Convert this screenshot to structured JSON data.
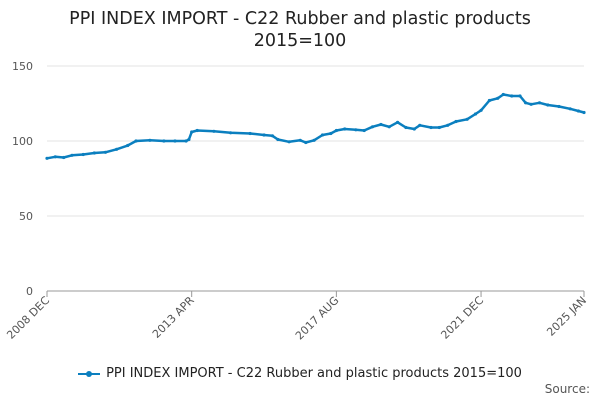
{
  "title_line1": "PPI INDEX IMPORT - C22 Rubber and plastic products",
  "title_line2": "2015=100",
  "legend_label": "PPI INDEX IMPORT - C22 Rubber and plastic products 2015=100",
  "source_label": "Source:",
  "colors": {
    "series": "#0b7fbf",
    "grid": "#e3e3e3",
    "axis": "#999999"
  },
  "chart_data": {
    "type": "line",
    "title": "PPI INDEX IMPORT - C22 Rubber and plastic products 2015=100",
    "xlabel": "",
    "ylabel": "",
    "ylim": [
      0,
      150
    ],
    "yticks": [
      0,
      50,
      100,
      150
    ],
    "grid": "horizontal",
    "legend_position": "bottom",
    "x_tick_labels": [
      "2008 DEC",
      "2013 APR",
      "2017 AUG",
      "2021 DEC",
      "2025 JAN"
    ],
    "x_tick_dates": [
      "2008-12",
      "2013-04",
      "2017-08",
      "2021-12",
      "2025-01"
    ],
    "series": [
      {
        "name": "PPI INDEX IMPORT - C22 Rubber and plastic products 2015=100",
        "points": [
          [
            "2008-12",
            88.5
          ],
          [
            "2009-03",
            89.5
          ],
          [
            "2009-06",
            89.0
          ],
          [
            "2009-09",
            90.5
          ],
          [
            "2010-01",
            91.0
          ],
          [
            "2010-05",
            92.0
          ],
          [
            "2010-09",
            92.5
          ],
          [
            "2011-01",
            94.5
          ],
          [
            "2011-05",
            97.0
          ],
          [
            "2011-08",
            100.0
          ],
          [
            "2012-01",
            100.5
          ],
          [
            "2012-06",
            100.0
          ],
          [
            "2012-10",
            100.0
          ],
          [
            "2013-02",
            100.0
          ],
          [
            "2013-03",
            101.0
          ],
          [
            "2013-04",
            106.0
          ],
          [
            "2013-06",
            107.0
          ],
          [
            "2013-12",
            106.5
          ],
          [
            "2014-06",
            105.5
          ],
          [
            "2015-01",
            105.0
          ],
          [
            "2015-06",
            104.0
          ],
          [
            "2015-09",
            103.5
          ],
          [
            "2015-11",
            101.0
          ],
          [
            "2016-03",
            99.5
          ],
          [
            "2016-07",
            100.5
          ],
          [
            "2016-09",
            99.0
          ],
          [
            "2016-12",
            100.5
          ],
          [
            "2017-03",
            104.0
          ],
          [
            "2017-06",
            105.0
          ],
          [
            "2017-08",
            107.0
          ],
          [
            "2017-11",
            108.0
          ],
          [
            "2018-03",
            107.5
          ],
          [
            "2018-06",
            107.0
          ],
          [
            "2018-09",
            109.5
          ],
          [
            "2018-12",
            111.0
          ],
          [
            "2019-03",
            109.5
          ],
          [
            "2019-06",
            112.5
          ],
          [
            "2019-09",
            109.0
          ],
          [
            "2019-12",
            108.0
          ],
          [
            "2020-02",
            110.5
          ],
          [
            "2020-06",
            109.0
          ],
          [
            "2020-09",
            109.0
          ],
          [
            "2020-12",
            110.5
          ],
          [
            "2021-03",
            113.0
          ],
          [
            "2021-07",
            114.5
          ],
          [
            "2021-10",
            118.0
          ],
          [
            "2021-12",
            120.5
          ],
          [
            "2022-03",
            127.0
          ],
          [
            "2022-06",
            128.5
          ],
          [
            "2022-08",
            131.0
          ],
          [
            "2022-11",
            130.0
          ],
          [
            "2023-02",
            130.0
          ],
          [
            "2023-04",
            125.5
          ],
          [
            "2023-06",
            124.5
          ],
          [
            "2023-09",
            125.5
          ],
          [
            "2023-12",
            124.0
          ],
          [
            "2024-04",
            123.0
          ],
          [
            "2024-08",
            121.5
          ],
          [
            "2024-11",
            120.0
          ],
          [
            "2025-01",
            119.0
          ]
        ]
      }
    ]
  }
}
